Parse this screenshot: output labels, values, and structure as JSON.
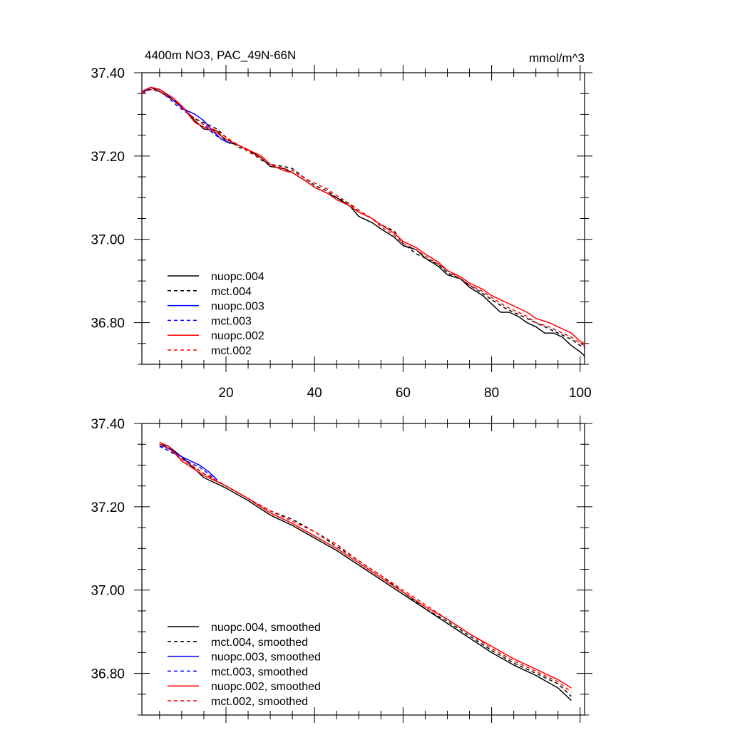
{
  "chart_data": [
    {
      "type": "line",
      "panel": "raw",
      "title": "4400m NO3, PAC_49N-66N",
      "units": "mmol/m^3",
      "xlim": [
        1,
        101
      ],
      "ylim": [
        36.7,
        37.4
      ],
      "x_ticks": [
        20,
        40,
        60,
        80,
        100
      ],
      "x_tick_labels": [
        "20",
        "40",
        "60",
        "80",
        "100"
      ],
      "y_ticks": [
        36.8,
        37.0,
        37.2,
        37.4
      ],
      "y_tick_labels": [
        "36.80",
        "37.00",
        "37.20",
        "37.40"
      ],
      "legend_position": "bottom-left",
      "series": [
        {
          "name": "nuopc.004",
          "color": "#000000",
          "dash": "solid",
          "x": [
            1,
            3,
            5,
            8,
            10,
            13,
            15,
            18,
            20,
            23,
            25,
            28,
            30,
            33,
            35,
            38,
            40,
            43,
            45,
            48,
            50,
            53,
            55,
            58,
            60,
            63,
            65,
            68,
            70,
            73,
            75,
            78,
            80,
            82,
            84,
            86,
            88,
            90,
            92,
            94,
            96,
            98,
            100,
            101
          ],
          "y": [
            37.355,
            37.365,
            37.355,
            37.335,
            37.32,
            37.285,
            37.265,
            37.26,
            37.235,
            37.225,
            37.215,
            37.195,
            37.175,
            37.17,
            37.16,
            37.14,
            37.125,
            37.11,
            37.1,
            37.08,
            37.055,
            37.04,
            37.025,
            37.005,
            36.985,
            36.975,
            36.955,
            36.935,
            36.915,
            36.905,
            36.885,
            36.865,
            36.845,
            36.825,
            36.825,
            36.815,
            36.8,
            36.79,
            36.775,
            36.775,
            36.765,
            36.745,
            36.73,
            36.72
          ]
        },
        {
          "name": "mct.004",
          "color": "#000000",
          "dash": "dashed",
          "x": [
            1,
            3,
            5,
            8,
            10,
            13,
            15,
            18,
            20,
            23,
            25,
            28,
            30,
            33,
            35,
            38,
            40,
            43,
            45,
            48,
            50,
            53,
            55,
            58,
            60,
            63,
            65,
            68,
            70,
            73,
            75,
            78,
            80,
            83,
            85,
            88,
            90,
            93,
            95,
            98,
            100,
            101
          ],
          "y": [
            37.355,
            37.36,
            37.355,
            37.335,
            37.315,
            37.29,
            37.28,
            37.265,
            37.245,
            37.22,
            37.215,
            37.19,
            37.18,
            37.175,
            37.17,
            37.145,
            37.13,
            37.115,
            37.1,
            37.085,
            37.065,
            37.05,
            37.035,
            37.02,
            36.99,
            36.965,
            36.955,
            36.94,
            36.92,
            36.905,
            36.89,
            36.87,
            36.855,
            36.835,
            36.825,
            36.81,
            36.8,
            36.785,
            36.775,
            36.76,
            36.745,
            36.74
          ]
        },
        {
          "name": "nuopc.003",
          "color": "#0000ff",
          "dash": "solid",
          "x": [
            1,
            3,
            5,
            7,
            9,
            11,
            13,
            15,
            17,
            19,
            21
          ],
          "y": [
            37.35,
            37.365,
            37.36,
            37.345,
            37.325,
            37.31,
            37.3,
            37.285,
            37.26,
            37.24,
            37.23
          ]
        },
        {
          "name": "mct.003",
          "color": "#0000ff",
          "dash": "dashed",
          "x": [
            1,
            3,
            5,
            7,
            9,
            11,
            13,
            15,
            17,
            19,
            21
          ],
          "y": [
            37.35,
            37.36,
            37.355,
            37.34,
            37.32,
            37.305,
            37.29,
            37.275,
            37.255,
            37.24,
            37.23
          ]
        },
        {
          "name": "nuopc.002",
          "color": "#ff0000",
          "dash": "solid",
          "x": [
            1,
            3,
            5,
            8,
            10,
            13,
            15,
            18,
            20,
            23,
            25,
            28,
            30,
            33,
            35,
            38,
            40,
            43,
            45,
            48,
            50,
            53,
            55,
            58,
            60,
            63,
            65,
            68,
            70,
            73,
            75,
            78,
            80,
            83,
            85,
            88,
            90,
            93,
            95,
            98,
            100,
            101
          ],
          "y": [
            37.355,
            37.365,
            37.36,
            37.34,
            37.32,
            37.28,
            37.27,
            37.255,
            37.24,
            37.225,
            37.215,
            37.2,
            37.18,
            37.165,
            37.16,
            37.14,
            37.125,
            37.11,
            37.095,
            37.08,
            37.065,
            37.05,
            37.035,
            37.015,
            36.995,
            36.98,
            36.965,
            36.945,
            36.925,
            36.91,
            36.895,
            36.88,
            36.865,
            36.85,
            36.84,
            36.825,
            36.81,
            36.8,
            36.79,
            36.775,
            36.755,
            36.75
          ]
        },
        {
          "name": "mct.002",
          "color": "#ff0000",
          "dash": "dashed",
          "x": [
            1,
            3,
            5,
            8,
            10,
            13,
            15,
            18,
            20,
            23,
            25,
            28,
            30,
            33,
            35,
            38,
            40,
            43,
            45,
            48,
            50,
            53,
            55,
            58,
            60,
            63,
            65,
            68,
            70,
            73,
            75,
            78,
            80,
            83,
            85,
            88,
            90,
            93,
            95,
            98,
            100,
            101
          ],
          "y": [
            37.35,
            37.36,
            37.355,
            37.335,
            37.315,
            37.29,
            37.275,
            37.26,
            37.245,
            37.225,
            37.21,
            37.195,
            37.18,
            37.17,
            37.165,
            37.145,
            37.135,
            37.12,
            37.105,
            37.085,
            37.07,
            37.05,
            37.03,
            37.01,
            36.99,
            36.975,
            36.96,
            36.94,
            36.925,
            36.905,
            36.89,
            36.875,
            36.86,
            36.84,
            36.83,
            36.815,
            36.8,
            36.79,
            36.78,
            36.765,
            36.75,
            36.745
          ]
        }
      ]
    },
    {
      "type": "line",
      "panel": "smoothed",
      "xlim": [
        1,
        101
      ],
      "ylim": [
        36.7,
        37.4
      ],
      "y_ticks": [
        36.8,
        37.0,
        37.2,
        37.4
      ],
      "y_tick_labels": [
        "36.80",
        "37.00",
        "37.20",
        "37.40"
      ],
      "x_ticks": [
        20,
        40,
        60,
        80,
        100
      ],
      "legend_position": "bottom-left",
      "series": [
        {
          "name": "nuopc.004, smoothed",
          "color": "#000000",
          "dash": "solid",
          "x": [
            5,
            7,
            10,
            15,
            20,
            25,
            30,
            35,
            40,
            45,
            50,
            55,
            60,
            65,
            70,
            75,
            80,
            85,
            90,
            95,
            98
          ],
          "y": [
            37.35,
            37.345,
            37.32,
            37.27,
            37.245,
            37.215,
            37.18,
            37.155,
            37.125,
            37.095,
            37.06,
            37.025,
            36.99,
            36.955,
            36.92,
            36.885,
            36.85,
            36.82,
            36.795,
            36.765,
            36.735
          ]
        },
        {
          "name": "mct.004, smoothed",
          "color": "#000000",
          "dash": "dashed",
          "x": [
            5,
            7,
            10,
            15,
            20,
            25,
            30,
            35,
            40,
            45,
            50,
            55,
            60,
            65,
            70,
            75,
            80,
            85,
            90,
            95,
            98
          ],
          "y": [
            37.345,
            37.34,
            37.315,
            37.28,
            37.25,
            37.22,
            37.19,
            37.17,
            37.14,
            37.105,
            37.07,
            37.035,
            36.995,
            36.955,
            36.925,
            36.89,
            36.855,
            36.825,
            36.8,
            36.775,
            36.745
          ]
        },
        {
          "name": "nuopc.003, smoothed",
          "color": "#0000ff",
          "dash": "solid",
          "x": [
            5,
            7,
            10,
            12,
            14,
            16,
            18
          ],
          "y": [
            37.35,
            37.34,
            37.32,
            37.31,
            37.3,
            37.285,
            37.265
          ]
        },
        {
          "name": "mct.003, smoothed",
          "color": "#0000ff",
          "dash": "dashed",
          "x": [
            5,
            7,
            10,
            12,
            14,
            16,
            18
          ],
          "y": [
            37.345,
            37.335,
            37.315,
            37.305,
            37.295,
            37.28,
            37.26
          ]
        },
        {
          "name": "nuopc.002, smoothed",
          "color": "#ff0000",
          "dash": "solid",
          "x": [
            5,
            7,
            10,
            15,
            20,
            25,
            30,
            35,
            40,
            45,
            50,
            55,
            60,
            65,
            70,
            75,
            80,
            85,
            90,
            95,
            98
          ],
          "y": [
            37.355,
            37.345,
            37.31,
            37.275,
            37.25,
            37.22,
            37.185,
            37.16,
            37.13,
            37.1,
            37.065,
            37.03,
            36.995,
            36.96,
            36.93,
            36.895,
            36.865,
            36.835,
            36.81,
            36.785,
            36.765
          ]
        },
        {
          "name": "mct.002, smoothed",
          "color": "#ff0000",
          "dash": "dashed",
          "x": [
            5,
            7,
            10,
            15,
            20,
            25,
            30,
            35,
            40,
            45,
            50,
            55,
            60,
            65,
            70,
            75,
            80,
            85,
            90,
            95,
            98
          ],
          "y": [
            37.35,
            37.34,
            37.315,
            37.28,
            37.25,
            37.22,
            37.19,
            37.165,
            37.14,
            37.11,
            37.07,
            37.035,
            37.0,
            36.965,
            36.93,
            36.895,
            36.86,
            36.83,
            36.805,
            36.78,
            36.755
          ]
        }
      ]
    }
  ]
}
